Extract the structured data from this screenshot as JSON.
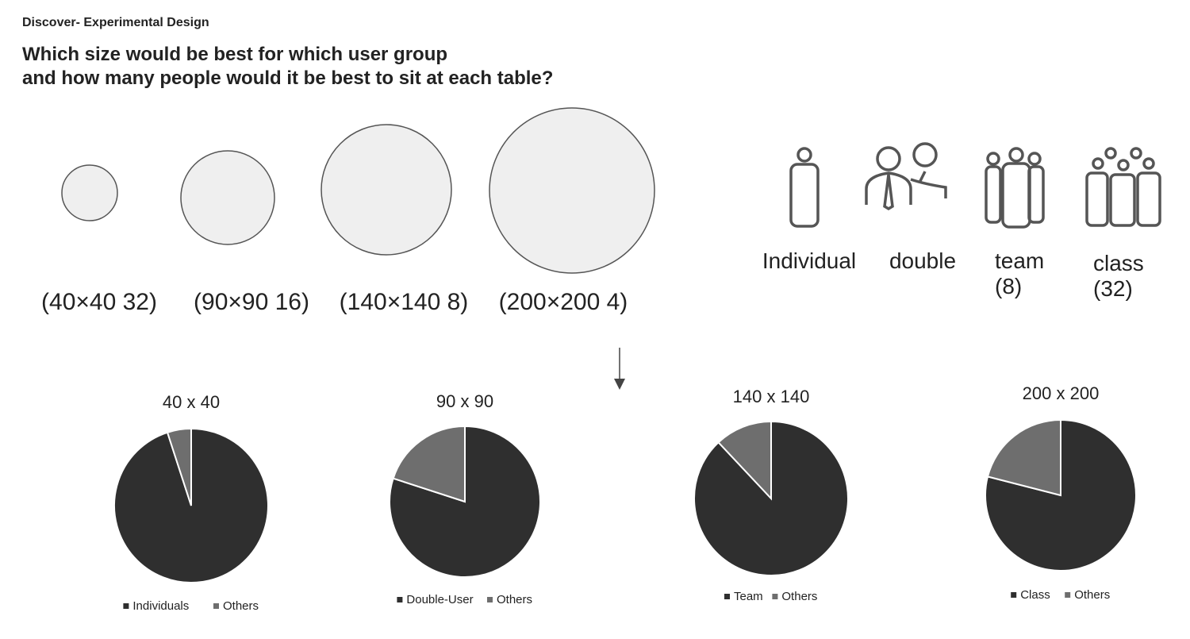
{
  "header": {
    "label": "Discover- Experimental Design",
    "question": [
      "Which size would be best for which user group",
      "and how many people would it be best to sit at each table?"
    ]
  },
  "sizes": [
    "(40×40 32)",
    "(90×90 16)",
    "(140×140 8)",
    "(200×200 4)"
  ],
  "user_groups": [
    {
      "lines": [
        "Individual"
      ]
    },
    {
      "lines": [
        "double"
      ]
    },
    {
      "lines": [
        "team",
        "(8)"
      ]
    },
    {
      "lines": [
        "class",
        "(32)"
      ]
    }
  ],
  "chart_data": [
    {
      "type": "pie",
      "title": "40 x 40",
      "categories": [
        "Individuals",
        "Others"
      ],
      "values": [
        95,
        5
      ],
      "colors": [
        "#2f2f2f",
        "#6e6e6e"
      ]
    },
    {
      "type": "pie",
      "title": "90 x 90",
      "categories": [
        "Double-User",
        "Others"
      ],
      "values": [
        80,
        20
      ],
      "colors": [
        "#2f2f2f",
        "#6e6e6e"
      ]
    },
    {
      "type": "pie",
      "title": "140 x 140",
      "categories": [
        "Team",
        "Others"
      ],
      "values": [
        88,
        12
      ],
      "colors": [
        "#2f2f2f",
        "#6e6e6e"
      ]
    },
    {
      "type": "pie",
      "title": "200 x 200",
      "categories": [
        "Class",
        "Others"
      ],
      "values": [
        79,
        21
      ],
      "colors": [
        "#2f2f2f",
        "#6e6e6e"
      ]
    }
  ]
}
